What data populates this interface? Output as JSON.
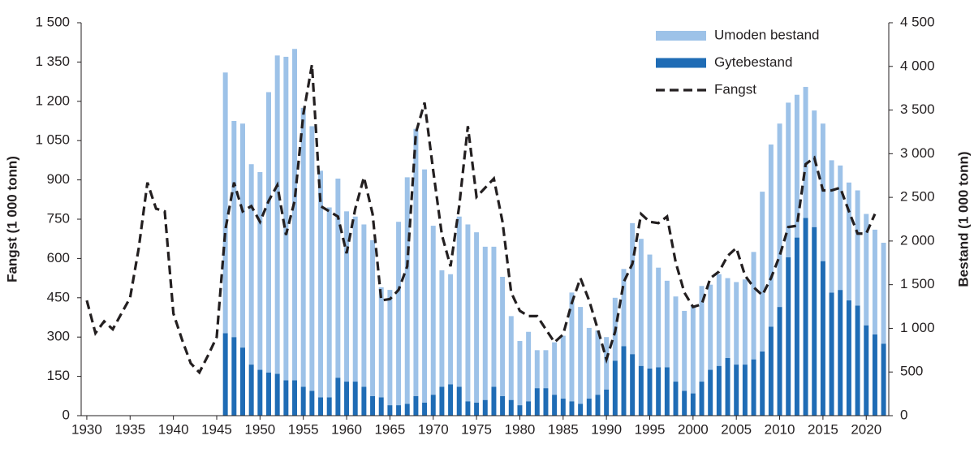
{
  "chart_data": {
    "type": "bar",
    "x": [
      1930,
      1931,
      1932,
      1933,
      1934,
      1935,
      1936,
      1937,
      1938,
      1939,
      1940,
      1941,
      1942,
      1943,
      1944,
      1945,
      1946,
      1947,
      1948,
      1949,
      1950,
      1951,
      1952,
      1953,
      1954,
      1955,
      1956,
      1957,
      1958,
      1959,
      1960,
      1961,
      1962,
      1963,
      1964,
      1965,
      1966,
      1967,
      1968,
      1969,
      1970,
      1971,
      1972,
      1973,
      1974,
      1975,
      1976,
      1977,
      1978,
      1979,
      1980,
      1981,
      1982,
      1983,
      1984,
      1985,
      1986,
      1987,
      1988,
      1989,
      1990,
      1991,
      1992,
      1993,
      1994,
      1995,
      1996,
      1997,
      1998,
      1999,
      2000,
      2001,
      2002,
      2003,
      2004,
      2005,
      2006,
      2007,
      2008,
      2009,
      2010,
      2011,
      2012,
      2013,
      2014,
      2015,
      2016,
      2017,
      2018,
      2019,
      2020,
      2021,
      2022
    ],
    "xlim": [
      1929.35,
      2022.6
    ],
    "xticks": [
      1930,
      1935,
      1940,
      1945,
      1950,
      1955,
      1960,
      1965,
      1970,
      1975,
      1980,
      1985,
      1990,
      1995,
      2000,
      2005,
      2010,
      2015,
      2020
    ],
    "ylabel": "Fangst (1 000 tonn)",
    "y2label": "Bestand (1 000 tonn)",
    "ylim": [
      0,
      1500
    ],
    "yticks": [
      0,
      150,
      300,
      450,
      600,
      750,
      900,
      {
        "value": 1050,
        "label": "1 050"
      },
      {
        "value": 1200,
        "label": "1 200"
      },
      {
        "value": 1350,
        "label": "1 350"
      },
      {
        "value": 1500,
        "label": "1 500"
      }
    ],
    "y2lim": [
      0,
      4500
    ],
    "y2ticks": [
      0,
      500,
      {
        "value": 1000,
        "label": "1 000"
      },
      {
        "value": 1500,
        "label": "1 500"
      },
      {
        "value": 2000,
        "label": "2 000"
      },
      {
        "value": 2500,
        "label": "2 500"
      },
      {
        "value": 3000,
        "label": "3 000"
      },
      {
        "value": 3500,
        "label": "3 500"
      },
      {
        "value": 4000,
        "label": "4 000"
      },
      {
        "value": 4500,
        "label": "4 500"
      }
    ],
    "legend": "upper right",
    "series": [
      {
        "name": "Umoden bestand",
        "type": "bar",
        "axis": "y2",
        "color": "#9dc2e8",
        "values": [
          null,
          null,
          null,
          null,
          null,
          null,
          null,
          null,
          null,
          null,
          null,
          null,
          null,
          null,
          null,
          null,
          2985,
          2475,
          2565,
          2295,
          2265,
          3210,
          3645,
          3705,
          3795,
          3195,
          3030,
          2595,
          2175,
          2280,
          1950,
          1890,
          1860,
          1785,
          1260,
          1320,
          2100,
          2595,
          3060,
          2670,
          1935,
          1335,
          1260,
          1950,
          2025,
          1950,
          1755,
          1605,
          1365,
          960,
          735,
          795,
          435,
          435,
          600,
          720,
          1245,
          1110,
          810,
          735,
          600,
          720,
          885,
          1500,
          1455,
          1305,
          1140,
          990,
          975,
          915,
          1005,
          1095,
          975,
          1050,
          915,
          945,
          975,
          1230,
          1830,
          2085,
          2100,
          1770,
          1635,
          1500,
          1335,
          1575,
          1515,
          1425,
          1350,
          1320,
          1275,
          1200,
          1155
        ]
      },
      {
        "name": "Gytebestand",
        "type": "bar",
        "axis": "y2",
        "color": "#1f6cb5",
        "values": [
          null,
          null,
          null,
          null,
          null,
          null,
          null,
          null,
          null,
          null,
          null,
          null,
          null,
          null,
          null,
          null,
          945,
          900,
          780,
          585,
          525,
          495,
          480,
          405,
          405,
          330,
          285,
          210,
          210,
          435,
          390,
          390,
          330,
          225,
          210,
          120,
          120,
          135,
          225,
          150,
          240,
          330,
          360,
          330,
          165,
          150,
          180,
          330,
          225,
          180,
          120,
          165,
          315,
          315,
          240,
          195,
          165,
          135,
          195,
          240,
          300,
          630,
          795,
          705,
          570,
          540,
          555,
          555,
          390,
          285,
          255,
          390,
          525,
          570,
          660,
          585,
          585,
          645,
          735,
          1020,
          1245,
          1815,
          2040,
          2265,
          2160,
          1770,
          1410,
          1440,
          1320,
          1260,
          1035,
          930,
          825
        ]
      },
      {
        "name": "Fangst",
        "type": "line",
        "axis": "y",
        "color": "#231f20",
        "values": [
          440,
          315,
          360,
          330,
          390,
          450,
          640,
          890,
          790,
          780,
          390,
          290,
          200,
          165,
          230,
          300,
          710,
          890,
          780,
          800,
          740,
          820,
          880,
          690,
          820,
          1150,
          1340,
          800,
          780,
          760,
          620,
          790,
          910,
          770,
          440,
          445,
          480,
          570,
          1080,
          1195,
          935,
          690,
          570,
          800,
          1105,
          835,
          870,
          905,
          740,
          470,
          400,
          380,
          380,
          330,
          280,
          310,
          430,
          525,
          440,
          330,
          215,
          320,
          510,
          580,
          770,
          740,
          735,
          760,
          585,
          470,
          415,
          425,
          525,
          550,
          610,
          640,
          535,
          490,
          460,
          525,
          610,
          720,
          725,
          960,
          985,
          860,
          860,
          870,
          780,
          695,
          695,
          770,
          null
        ]
      }
    ]
  }
}
